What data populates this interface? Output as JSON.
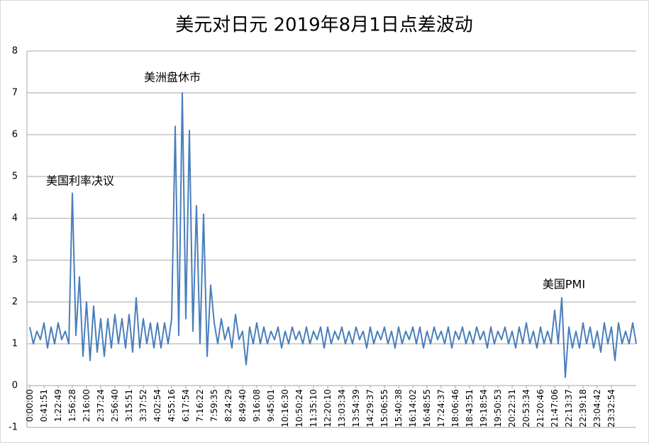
{
  "chart_data": {
    "type": "line",
    "title": "美元对日元 2019年8月1日点差波动",
    "annotations": [
      "美国利率决议",
      "美洲盘休市",
      "美国PMI"
    ],
    "categories": [
      "0:00:00",
      null,
      null,
      null,
      "0:41:51",
      null,
      null,
      null,
      "1:22:49",
      null,
      null,
      null,
      "1:56:28",
      null,
      null,
      null,
      "2:16:00",
      null,
      null,
      null,
      "2:37:24",
      null,
      null,
      null,
      "2:56:40",
      null,
      null,
      null,
      "3:15:51",
      null,
      null,
      null,
      "3:37:52",
      null,
      null,
      null,
      "4:02:54",
      null,
      null,
      null,
      "4:55:16",
      null,
      null,
      null,
      "6:17:54",
      null,
      null,
      null,
      "7:16:22",
      null,
      null,
      null,
      "7:59:35",
      null,
      null,
      null,
      "8:24:29",
      null,
      null,
      null,
      "8:49:40",
      null,
      null,
      null,
      "9:16:08",
      null,
      null,
      null,
      "9:45:01",
      null,
      null,
      null,
      "10:16:30",
      null,
      null,
      null,
      "10:50:24",
      null,
      null,
      null,
      "11:35:10",
      null,
      null,
      null,
      "12:20:10",
      null,
      null,
      null,
      "13:03:34",
      null,
      null,
      null,
      "13:54:39",
      null,
      null,
      null,
      "14:29:37",
      null,
      null,
      null,
      "15:06:55",
      null,
      null,
      null,
      "15:40:38",
      null,
      null,
      null,
      "16:14:02",
      null,
      null,
      null,
      "16:48:55",
      null,
      null,
      null,
      "17:24:37",
      null,
      null,
      null,
      "18:06:46",
      null,
      null,
      null,
      "18:43:51",
      null,
      null,
      null,
      "19:18:54",
      null,
      null,
      null,
      "19:50:53",
      null,
      null,
      null,
      "20:22:31",
      null,
      null,
      null,
      "20:53:34",
      null,
      null,
      null,
      "21:20:46",
      null,
      null,
      null,
      "21:47:06",
      null,
      null,
      null,
      "22:13:37",
      null,
      null,
      null,
      "22:39:18",
      null,
      null,
      null,
      "23:04:42",
      null,
      null,
      null,
      "23:32:54",
      null,
      null,
      null,
      null,
      null,
      null,
      null
    ],
    "values": [
      1.4,
      1.0,
      1.3,
      1.1,
      1.5,
      0.9,
      1.4,
      1.0,
      1.5,
      1.1,
      1.3,
      1.0,
      4.6,
      1.2,
      2.6,
      0.7,
      2.0,
      0.6,
      1.9,
      0.8,
      1.6,
      0.7,
      1.6,
      0.9,
      1.7,
      1.0,
      1.6,
      0.9,
      1.7,
      0.8,
      2.1,
      0.9,
      1.6,
      1.0,
      1.5,
      0.9,
      1.5,
      0.9,
      1.5,
      1.0,
      1.6,
      6.2,
      1.2,
      7.0,
      1.6,
      6.1,
      1.3,
      4.3,
      1.0,
      4.1,
      0.7,
      2.4,
      1.5,
      1.0,
      1.6,
      1.1,
      1.4,
      0.9,
      1.7,
      1.1,
      1.3,
      0.5,
      1.4,
      1.0,
      1.5,
      1.0,
      1.4,
      1.0,
      1.3,
      1.1,
      1.4,
      0.9,
      1.3,
      1.0,
      1.4,
      1.1,
      1.3,
      1.0,
      1.4,
      1.0,
      1.3,
      1.1,
      1.4,
      0.9,
      1.4,
      1.0,
      1.3,
      1.1,
      1.4,
      1.0,
      1.3,
      1.0,
      1.4,
      1.1,
      1.3,
      0.9,
      1.4,
      1.0,
      1.3,
      1.1,
      1.4,
      1.0,
      1.3,
      0.9,
      1.4,
      1.0,
      1.3,
      1.1,
      1.4,
      1.0,
      1.4,
      0.9,
      1.3,
      1.0,
      1.4,
      1.1,
      1.3,
      1.0,
      1.4,
      0.9,
      1.3,
      1.1,
      1.4,
      1.0,
      1.3,
      1.0,
      1.4,
      1.1,
      1.3,
      0.9,
      1.4,
      1.0,
      1.3,
      1.1,
      1.4,
      1.0,
      1.3,
      0.9,
      1.4,
      1.0,
      1.5,
      1.0,
      1.3,
      0.9,
      1.4,
      1.0,
      1.3,
      1.0,
      1.8,
      1.0,
      2.1,
      0.2,
      1.4,
      0.9,
      1.3,
      0.9,
      1.5,
      1.0,
      1.4,
      0.9,
      1.3,
      0.8,
      1.5,
      1.0,
      1.4,
      0.6,
      1.5,
      1.0,
      1.3,
      1.0,
      1.5,
      1.0
    ],
    "color": "#4a7ebb",
    "ylim": [
      -1,
      8
    ],
    "yticks": [
      -1,
      0,
      1,
      2,
      3,
      4,
      5,
      6,
      7,
      8
    ],
    "grid": true
  }
}
